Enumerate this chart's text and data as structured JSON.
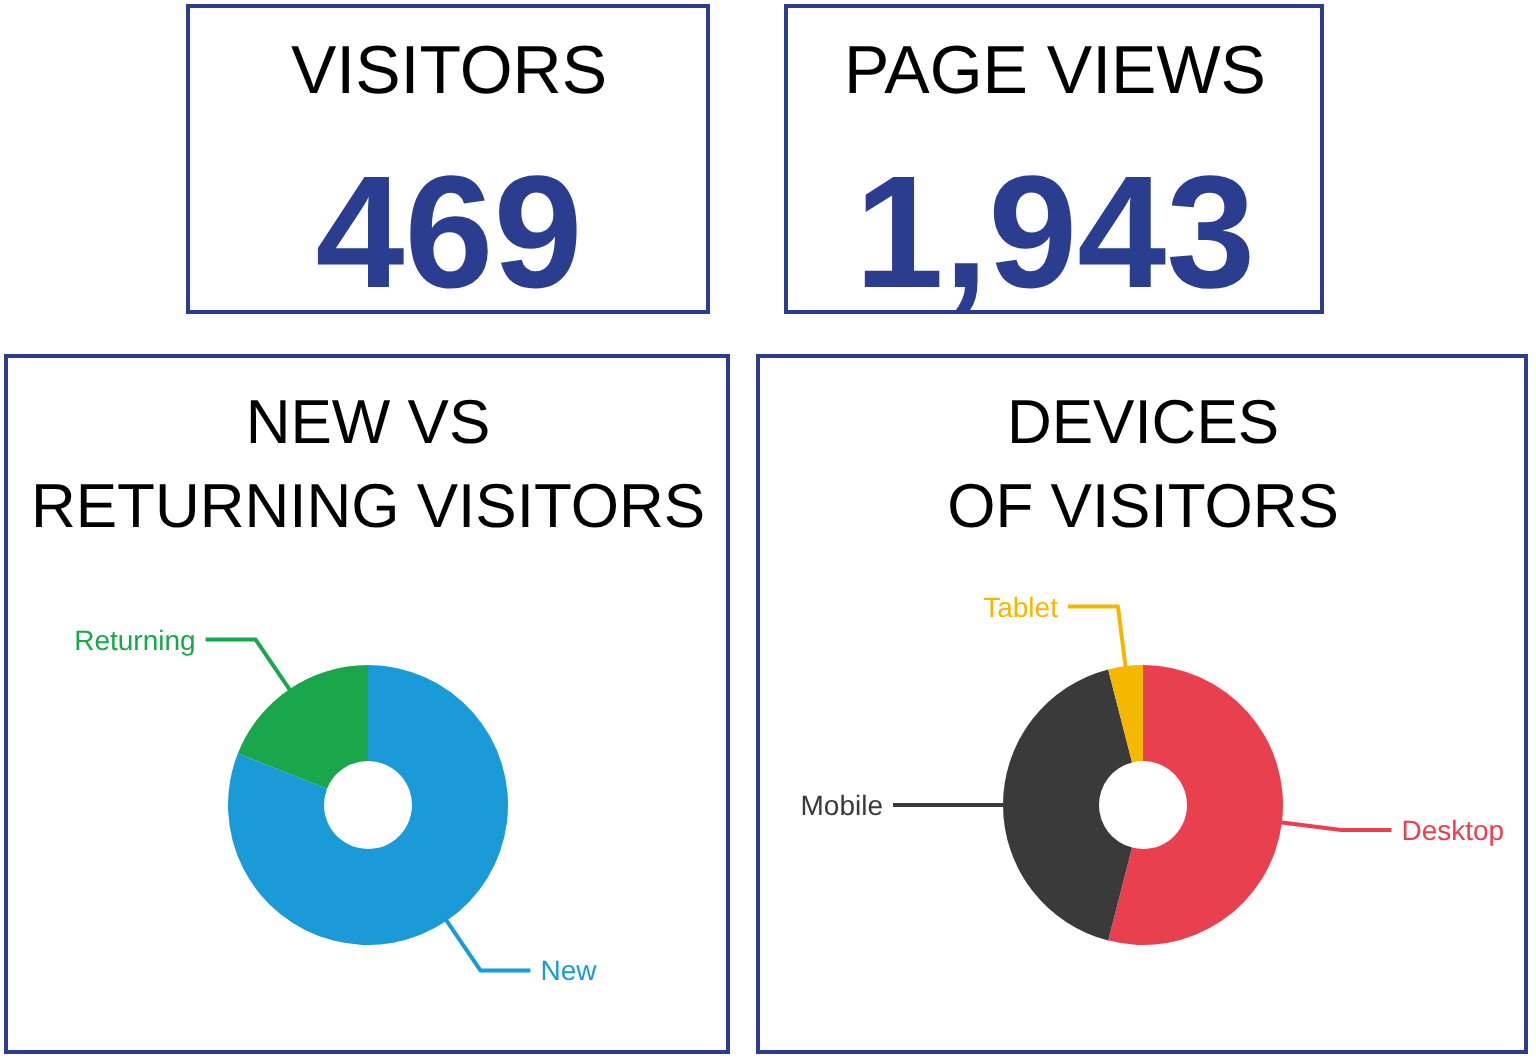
{
  "chart_data": [
    {
      "type": "other",
      "title": "VISITORS",
      "values": [
        469
      ],
      "value_labels": [
        "469"
      ]
    },
    {
      "type": "other",
      "title": "PAGE VIEWS",
      "values": [
        1943
      ],
      "value_labels": [
        "1,943"
      ]
    },
    {
      "type": "donut",
      "title": "NEW VS\nRETURNING VISITORS",
      "categories": [
        "New",
        "Returning"
      ],
      "values": [
        81,
        19
      ],
      "colors": [
        "#1a9ad6",
        "#1aa64a"
      ]
    },
    {
      "type": "donut",
      "title": "DEVICES\nOF VISITORS",
      "categories": [
        "Desktop",
        "Mobile",
        "Tablet"
      ],
      "values": [
        54,
        42,
        4
      ],
      "colors": [
        "#e8404e",
        "#3a3a3a",
        "#f5b800"
      ]
    }
  ]
}
